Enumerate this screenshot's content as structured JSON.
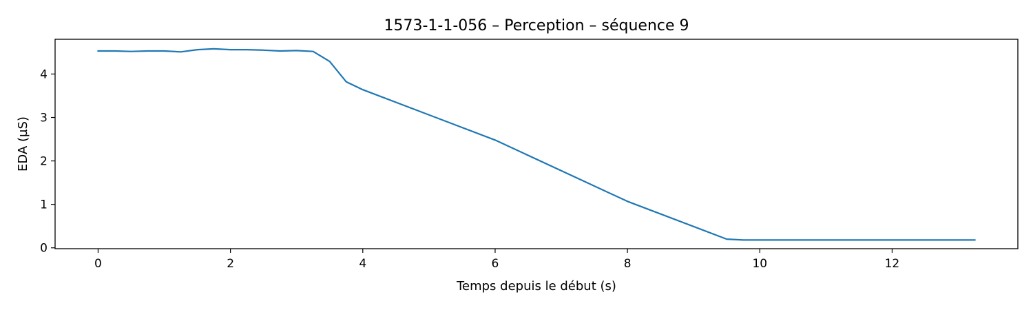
{
  "chart_data": {
    "type": "line",
    "title": "1573-1-1-056 – Perception – séquence 9",
    "xlabel": "Temps depuis le début (s)",
    "ylabel": "EDA (µS)",
    "xlim": [
      -0.65,
      13.9
    ],
    "ylim": [
      -0.02,
      4.8
    ],
    "xticks": [
      0,
      2,
      4,
      6,
      8,
      10,
      12
    ],
    "yticks": [
      0,
      1,
      2,
      3,
      4
    ],
    "grid": false,
    "series": [
      {
        "color": "#1f77b4",
        "x": [
          0,
          0.25,
          0.5,
          0.75,
          1.0,
          1.25,
          1.5,
          1.75,
          2.0,
          2.25,
          2.5,
          2.75,
          3.0,
          3.25,
          3.5,
          3.75,
          4.0,
          6.0,
          8.0,
          9.5,
          9.75,
          10.0,
          10.5,
          11.0,
          11.5,
          12.0,
          12.5,
          13.0,
          13.25
        ],
        "y": [
          4.53,
          4.53,
          4.52,
          4.53,
          4.53,
          4.51,
          4.56,
          4.58,
          4.56,
          4.56,
          4.55,
          4.53,
          4.54,
          4.52,
          4.29,
          3.82,
          3.64,
          2.48,
          1.07,
          0.2,
          0.18,
          0.18,
          0.18,
          0.18,
          0.18,
          0.18,
          0.18,
          0.18,
          0.18
        ]
      }
    ]
  }
}
